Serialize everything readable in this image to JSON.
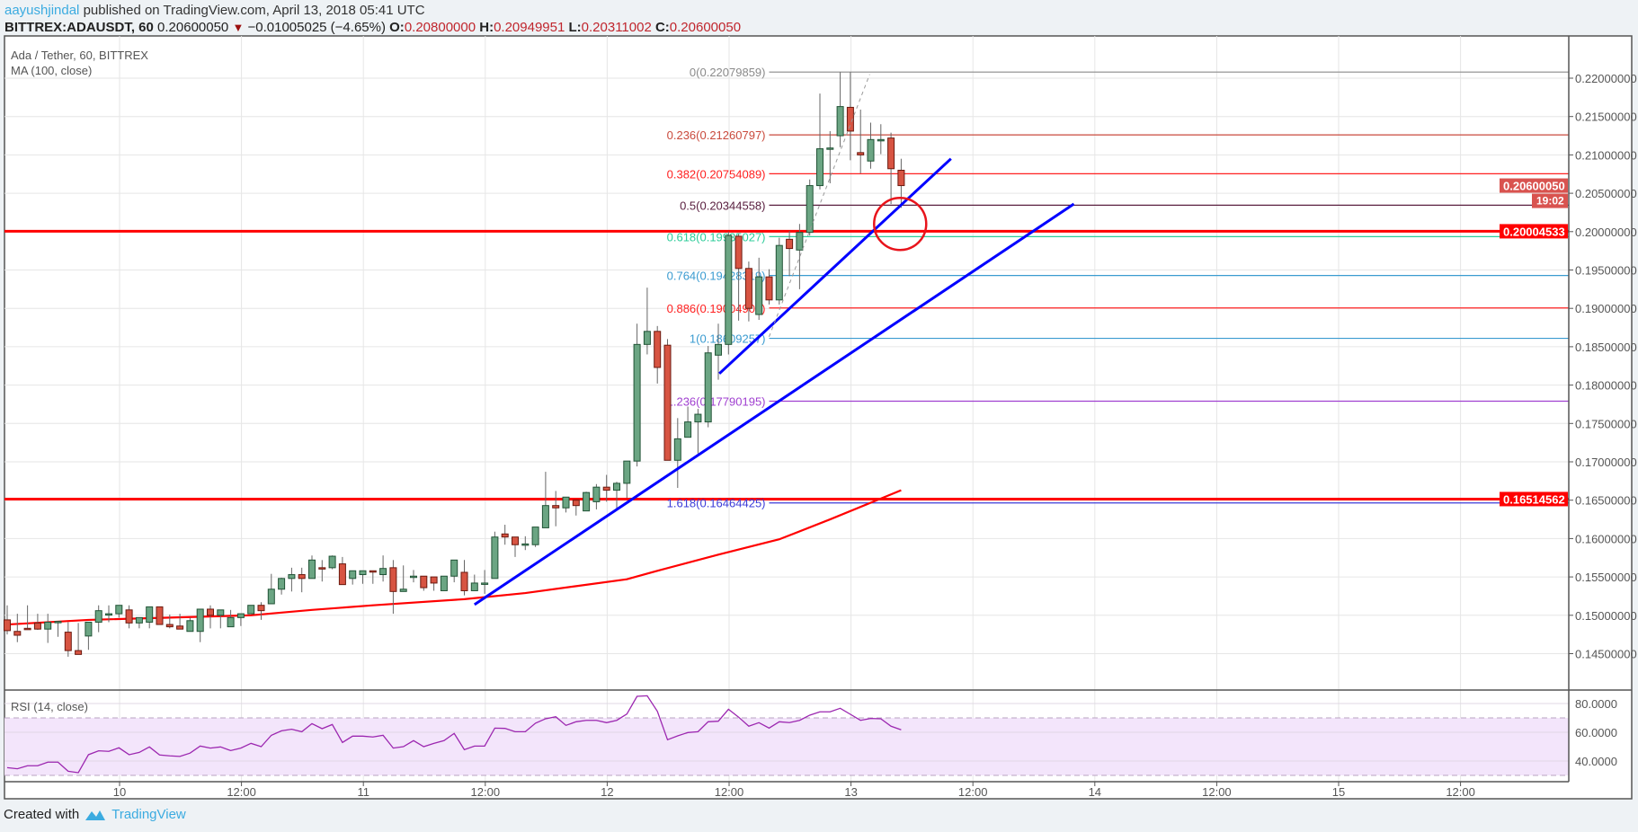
{
  "header": {
    "author": "aayushjindal",
    "published": "published on TradingView.com, April 13, 2018 05:41 UTC",
    "symbol": "BITTREX:ADAUSDT, 60",
    "last": "0.20600050",
    "change": "−0.01005025 (−4.65%)",
    "o_label": "O:",
    "o": "0.20800000",
    "h_label": "H:",
    "h": "0.20949951",
    "l_label": "L:",
    "l": "0.20311002",
    "c_label": "C:",
    "c": "0.20600050",
    "down_icon": "triangle-down"
  },
  "legend": {
    "title": "Ada / Tether, 60, BITTREX",
    "ma": "MA (100, close)",
    "rsi": "RSI (14, close)"
  },
  "footer": {
    "created_with": "Created with",
    "brand": "TradingView"
  },
  "colors": {
    "up": "#6ba583",
    "down": "#d75442",
    "ma": "#ff0000",
    "rsi": "#9c27b0",
    "trend": "#0000ff",
    "hline": "#ff0000"
  },
  "chart_data": {
    "type": "candlestick",
    "title": "Ada / Tether, 60, BITTREX",
    "price_ticks": [
      "0.22000000",
      "0.21500000",
      "0.21000000",
      "0.20500000",
      "0.20000000",
      "0.19500000",
      "0.19000000",
      "0.18500000",
      "0.18000000",
      "0.17500000",
      "0.17000000",
      "0.16500000",
      "0.16000000",
      "0.15500000",
      "0.15000000",
      "0.14500000"
    ],
    "price_tick_values": [
      0.22,
      0.215,
      0.21,
      0.205,
      0.2,
      0.195,
      0.19,
      0.185,
      0.18,
      0.175,
      0.17,
      0.165,
      0.16,
      0.155,
      0.15,
      0.145
    ],
    "time_ticks": [
      "10",
      "12:00",
      "11",
      "12:00",
      "12",
      "12:00",
      "13",
      "12:00",
      "14",
      "12:00",
      "15",
      "12:00"
    ],
    "time_tick_candle_index": [
      11,
      23,
      35,
      47,
      59,
      71,
      83,
      95,
      107,
      119,
      131,
      143
    ],
    "ohlc": [
      [
        0.1494,
        0.1513,
        0.1475,
        0.148
      ],
      [
        0.1479,
        0.1502,
        0.1465,
        0.1474
      ],
      [
        0.1483,
        0.1513,
        0.1481,
        0.1482
      ],
      [
        0.149,
        0.1502,
        0.1481,
        0.1482
      ],
      [
        0.1482,
        0.1502,
        0.1464,
        0.1491
      ],
      [
        0.1491,
        0.1492,
        0.1472,
        0.1492
      ],
      [
        0.1478,
        0.1491,
        0.1446,
        0.1454
      ],
      [
        0.1454,
        0.149,
        0.1449,
        0.1449
      ],
      [
        0.1473,
        0.1491,
        0.1455,
        0.1491
      ],
      [
        0.1491,
        0.1513,
        0.1478,
        0.1506
      ],
      [
        0.1502,
        0.1513,
        0.1491,
        0.1502
      ],
      [
        0.1502,
        0.1513,
        0.1497,
        0.1513
      ],
      [
        0.1507,
        0.1513,
        0.1483,
        0.149
      ],
      [
        0.149,
        0.1497,
        0.1483,
        0.1497
      ],
      [
        0.1491,
        0.1511,
        0.1483,
        0.1511
      ],
      [
        0.1511,
        0.1511,
        0.1488,
        0.1488
      ],
      [
        0.1488,
        0.1501,
        0.1483,
        0.1485
      ],
      [
        0.1486,
        0.1502,
        0.1482,
        0.1482
      ],
      [
        0.1479,
        0.1497,
        0.1479,
        0.1493
      ],
      [
        0.1479,
        0.1508,
        0.1465,
        0.1508
      ],
      [
        0.1508,
        0.1513,
        0.1483,
        0.15
      ],
      [
        0.15,
        0.1507,
        0.1483,
        0.1507
      ],
      [
        0.1485,
        0.1507,
        0.1485,
        0.1497
      ],
      [
        0.1497,
        0.1502,
        0.1486,
        0.1502
      ],
      [
        0.1502,
        0.1513,
        0.1502,
        0.1513
      ],
      [
        0.1513,
        0.1517,
        0.1494,
        0.1506
      ],
      [
        0.1515,
        0.1554,
        0.1515,
        0.1534
      ],
      [
        0.1534,
        0.1549,
        0.1527,
        0.1548
      ],
      [
        0.1548,
        0.1562,
        0.1531,
        0.1553
      ],
      [
        0.1553,
        0.1562,
        0.153,
        0.1548
      ],
      [
        0.1548,
        0.1578,
        0.1548,
        0.1572
      ],
      [
        0.1562,
        0.1572,
        0.1544,
        0.1561
      ],
      [
        0.1562,
        0.1578,
        0.156,
        0.1577
      ],
      [
        0.1567,
        0.1576,
        0.154,
        0.154
      ],
      [
        0.1548,
        0.1558,
        0.154,
        0.1558
      ],
      [
        0.1553,
        0.1558,
        0.1541,
        0.1558
      ],
      [
        0.1558,
        0.1558,
        0.1541,
        0.1557
      ],
      [
        0.1553,
        0.1578,
        0.1544,
        0.1561
      ],
      [
        0.1562,
        0.1572,
        0.1502,
        0.1531
      ],
      [
        0.1531,
        0.1565,
        0.1531,
        0.1534
      ],
      [
        0.1551,
        0.1559,
        0.1543,
        0.1551
      ],
      [
        0.1551,
        0.1551,
        0.1532,
        0.1536
      ],
      [
        0.155,
        0.155,
        0.1532,
        0.1542
      ],
      [
        0.1532,
        0.1551,
        0.1532,
        0.1551
      ],
      [
        0.1551,
        0.1572,
        0.1543,
        0.1572
      ],
      [
        0.1556,
        0.1572,
        0.1526,
        0.1532
      ],
      [
        0.1532,
        0.1553,
        0.1532,
        0.1542
      ],
      [
        0.1542,
        0.1559,
        0.1528,
        0.1542
      ],
      [
        0.1548,
        0.1609,
        0.1548,
        0.1602
      ],
      [
        0.1606,
        0.1618,
        0.1592,
        0.1602
      ],
      [
        0.1602,
        0.1602,
        0.1576,
        0.1592
      ],
      [
        0.1592,
        0.1603,
        0.1585,
        0.1593
      ],
      [
        0.1592,
        0.1615,
        0.1589,
        0.1615
      ],
      [
        0.1614,
        0.1687,
        0.1614,
        0.1643
      ],
      [
        0.1643,
        0.1662,
        0.1616,
        0.164
      ],
      [
        0.164,
        0.1654,
        0.1634,
        0.1654
      ],
      [
        0.165,
        0.165,
        0.163,
        0.1643
      ],
      [
        0.1636,
        0.1661,
        0.1636,
        0.166
      ],
      [
        0.1648,
        0.1671,
        0.1638,
        0.1667
      ],
      [
        0.1667,
        0.1683,
        0.1648,
        0.1663
      ],
      [
        0.1663,
        0.1674,
        0.1637,
        0.1672
      ],
      [
        0.1672,
        0.1701,
        0.1653,
        0.1701
      ],
      [
        0.1701,
        0.188,
        0.1694,
        0.1853
      ],
      [
        0.1853,
        0.1927,
        0.184,
        0.187
      ],
      [
        0.187,
        0.1877,
        0.1802,
        0.1823
      ],
      [
        0.1852,
        0.186,
        0.1702,
        0.1702
      ],
      [
        0.1702,
        0.1757,
        0.1666,
        0.173
      ],
      [
        0.1732,
        0.1772,
        0.1732,
        0.1752
      ],
      [
        0.1752,
        0.1769,
        0.1711,
        0.1762
      ],
      [
        0.1752,
        0.1851,
        0.1745,
        0.1842
      ],
      [
        0.1839,
        0.188,
        0.1807,
        0.1853
      ],
      [
        0.1853,
        0.2,
        0.184,
        0.1995
      ],
      [
        0.1994,
        0.1997,
        0.1884,
        0.1952
      ],
      [
        0.1952,
        0.1961,
        0.1883,
        0.19
      ],
      [
        0.1892,
        0.1966,
        0.1885,
        0.1941
      ],
      [
        0.1941,
        0.1951,
        0.1905,
        0.1911
      ],
      [
        0.1911,
        0.1992,
        0.1905,
        0.1982
      ],
      [
        0.199,
        0.2001,
        0.1942,
        0.1978
      ],
      [
        0.1976,
        0.201,
        0.1925,
        0.1999
      ],
      [
        0.1999,
        0.2068,
        0.1995,
        0.206
      ],
      [
        0.206,
        0.218,
        0.2055,
        0.2108
      ],
      [
        0.2108,
        0.2131,
        0.2063,
        0.2109
      ],
      [
        0.2125,
        0.2208,
        0.211,
        0.2163
      ],
      [
        0.2162,
        0.2208,
        0.2093,
        0.2131
      ],
      [
        0.2103,
        0.2159,
        0.2076,
        0.21
      ],
      [
        0.2092,
        0.2142,
        0.2082,
        0.212
      ],
      [
        0.2119,
        0.214,
        0.2101,
        0.212
      ],
      [
        0.2122,
        0.2129,
        0.2036,
        0.2082
      ],
      [
        0.208,
        0.2095,
        0.2031,
        0.206
      ]
    ],
    "ma100": [
      [
        0,
        0.1488
      ],
      [
        8,
        0.1494
      ],
      [
        24,
        0.15
      ],
      [
        30,
        0.1507
      ],
      [
        36,
        0.1513
      ],
      [
        45,
        0.1521
      ],
      [
        51,
        0.1529
      ],
      [
        56,
        0.1538
      ],
      [
        61,
        0.1547
      ],
      [
        64,
        0.1558
      ],
      [
        70,
        0.1579
      ],
      [
        76,
        0.1599
      ],
      [
        81,
        0.1625
      ],
      [
        88,
        0.1663
      ]
    ],
    "fib": {
      "start_index": 75,
      "levels": [
        {
          "label": "0(0.22079859)",
          "value": 0.22079859,
          "color": "#8a8a8a"
        },
        {
          "label": "0.236(0.21260797)",
          "value": 0.21260797,
          "color": "#c94a3c"
        },
        {
          "label": "0.382(0.20754089)",
          "value": 0.20754089,
          "color": "#ff2020"
        },
        {
          "label": "0.5(0.20344558)",
          "value": 0.20344558,
          "color": "#5a2040"
        },
        {
          "label": "0.618(0.19935027)",
          "value": 0.19935027,
          "color": "#2ecc9a"
        },
        {
          "label": "0.764(0.19428319)",
          "value": 0.19428319,
          "color": "#3a9bd0"
        },
        {
          "label": "0.886(0.19004906)",
          "value": 0.19004906,
          "color": "#ff2020"
        },
        {
          "label": "1(0.18609257)",
          "value": 0.18609257,
          "color": "#3a9bd0"
        },
        {
          "label": "1.236(0.17790195)",
          "value": 0.17790195,
          "color": "#a040d0"
        },
        {
          "label": "1.618(0.16464425)",
          "value": 0.16464425,
          "color": "#3c3cd8"
        }
      ]
    },
    "horizontal_lines": [
      {
        "label": "0.20004533",
        "value": 0.20004533
      },
      {
        "label": "0.16514562",
        "value": 0.16514562
      }
    ],
    "trendlines": [
      {
        "from": [
          70.1,
          0.1815
        ],
        "to": [
          92.9,
          0.2095
        ]
      },
      {
        "from": [
          46.0,
          0.1514
        ],
        "to": [
          105.0,
          0.2036
        ]
      }
    ],
    "dashed_line": {
      "from": [
        75.0,
        0.1863
      ],
      "to": [
        84.9,
        0.2205
      ]
    },
    "circle": {
      "center": [
        87.9,
        0.201
      ]
    },
    "last_price_label": "0.20600050",
    "last_price_value": 0.2060005,
    "countdown": "19:02",
    "rsi": {
      "ticks": [
        "80.0000",
        "60.0000",
        "40.0000"
      ],
      "tick_values": [
        80,
        60,
        40
      ],
      "band": [
        30,
        70
      ],
      "values": [
        35.4,
        34.6,
        36.7,
        36.7,
        39.2,
        39.2,
        32.9,
        31.9,
        44.4,
        47.1,
        46.7,
        49.2,
        44.4,
        46.0,
        49.8,
        44.2,
        43.6,
        43.2,
        45.5,
        50.4,
        49.0,
        49.8,
        47.3,
        49.0,
        52.3,
        50.0,
        57.9,
        61.0,
        62.1,
        60.4,
        66.0,
        62.5,
        65.4,
        52.9,
        57.3,
        57.3,
        56.7,
        57.9,
        49.0,
        50.0,
        54.2,
        50.0,
        52.3,
        54.2,
        59.2,
        47.9,
        50.4,
        50.4,
        62.9,
        62.7,
        60.4,
        60.4,
        66.3,
        69.4,
        70.8,
        64.8,
        67.3,
        68.3,
        68.3,
        66.7,
        68.3,
        72.7,
        85.0,
        85.4,
        74.6,
        54.8,
        57.5,
        59.8,
        60.4,
        67.3,
        67.7,
        76.0,
        70.5,
        64.2,
        66.7,
        62.9,
        67.3,
        66.7,
        68.3,
        71.9,
        74.2,
        74.2,
        76.7,
        72.5,
        68.3,
        69.6,
        69.4,
        64.2,
        61.7
      ]
    }
  }
}
